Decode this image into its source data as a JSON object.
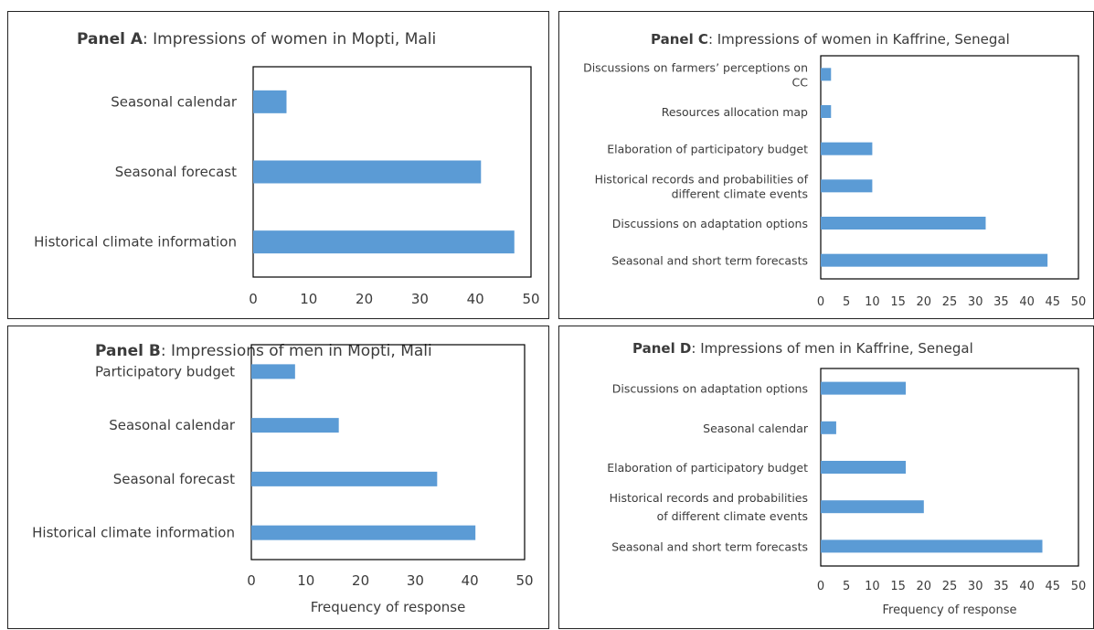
{
  "panels": [
    {
      "id": "a",
      "title_bold": "Panel A",
      "title_rest": ": Impressions of women in Mopti, Mali",
      "chart_type": "bar",
      "categories": [
        "Seasonal calendar",
        "Seasonal forecast",
        "Historical climate information"
      ],
      "values": [
        6,
        41,
        47
      ],
      "bar_color": "#5b9bd5",
      "xlim": [
        0,
        50
      ],
      "ticks": [
        0,
        10,
        20,
        30,
        40,
        50
      ],
      "xlabel": ""
    },
    {
      "id": "b",
      "title_bold": "Panel B",
      "title_rest": ": Impressions of men in Mopti, Mali",
      "chart_type": "bar",
      "categories": [
        "Participatory budget",
        "Seasonal calendar",
        "Seasonal forecast",
        "Historical climate information"
      ],
      "values": [
        8,
        16,
        34,
        41
      ],
      "bar_color": "#5b9bd5",
      "xlim": [
        0,
        50
      ],
      "ticks": [
        0,
        10,
        20,
        30,
        40,
        50
      ],
      "xlabel": "Frequency of response"
    },
    {
      "id": "c",
      "title_bold": "Panel C",
      "title_rest": ": Impressions of women in Kaffrine, Senegal",
      "chart_type": "bar",
      "categories": [
        "Discussions on farmers’ perceptions on CC",
        "Resources allocation map",
        "Elaboration of participatory budget",
        "Historical records and probabilities of different climate events",
        "Discussions on adaptation options",
        "Seasonal and short term forecasts"
      ],
      "category_lines": [
        [
          "Discussions on farmers’ perceptions on",
          "CC"
        ],
        [
          "Resources allocation map"
        ],
        [
          "Elaboration of participatory budget"
        ],
        [
          "Historical records and probabilities of",
          "different climate events"
        ],
        [
          "Discussions on adaptation options"
        ],
        [
          "Seasonal and short term forecasts"
        ]
      ],
      "values": [
        2,
        2,
        10,
        10,
        32,
        44
      ],
      "bar_color": "#5b9bd5",
      "xlim": [
        0,
        50
      ],
      "ticks": [
        0,
        5,
        10,
        15,
        20,
        25,
        30,
        35,
        40,
        45,
        50
      ],
      "xlabel": ""
    },
    {
      "id": "d",
      "title_bold": "Panel D",
      "title_rest": ": Impressions of men in Kaffrine, Senegal",
      "chart_type": "bar",
      "categories": [
        "Discussions on adaptation options",
        "Seasonal calendar",
        "Elaboration of participatory budget",
        "Historical records and probabilities of different climate events",
        "Seasonal and short term forecasts"
      ],
      "category_lines": [
        [
          "Discussions on adaptation options"
        ],
        [
          "Seasonal calendar"
        ],
        [
          "Elaboration of participatory budget"
        ],
        [
          "Historical records and probabilities",
          "of different climate events"
        ],
        [
          "Seasonal and short term forecasts"
        ]
      ],
      "values": [
        16.5,
        3,
        16.5,
        20,
        43
      ],
      "bar_color": "#5b9bd5",
      "xlim": [
        0,
        50
      ],
      "ticks": [
        0,
        5,
        10,
        15,
        20,
        25,
        30,
        35,
        40,
        45,
        50
      ],
      "xlabel": "Frequency of response"
    }
  ]
}
